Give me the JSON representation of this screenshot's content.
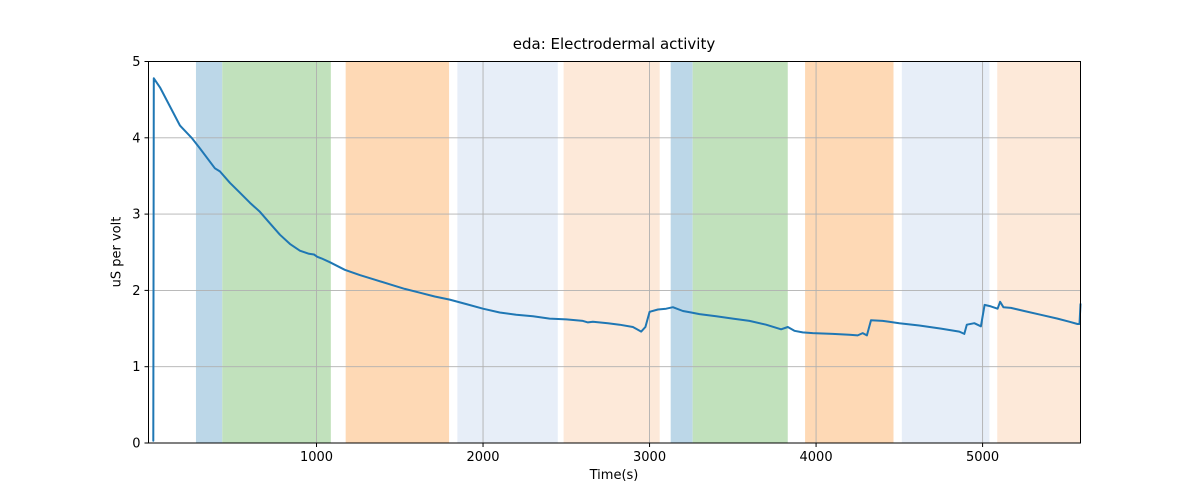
{
  "figure": {
    "title": "eda: Electrodermal activity",
    "xlabel": "Time(s)",
    "ylabel": "uS per volt"
  },
  "chart_data": {
    "type": "line",
    "title": "eda: Electrodermal activity",
    "xlabel": "Time(s)",
    "ylabel": "uS per volt",
    "xlim": [
      -9,
      5588
    ],
    "ylim": [
      0,
      5
    ],
    "xticks": [
      1000,
      2000,
      3000,
      4000,
      5000
    ],
    "yticks": [
      0,
      1,
      2,
      3,
      4,
      5
    ],
    "grid": true,
    "grid_color": "#b0b0b0",
    "line_color": "#1f77b4",
    "line_width": 2,
    "legend": "none",
    "series": [
      {
        "name": "eda",
        "points": [
          [
            20,
            0.03
          ],
          [
            23,
            4.78
          ],
          [
            60,
            4.66
          ],
          [
            120,
            4.41
          ],
          [
            180,
            4.16
          ],
          [
            250,
            4.0
          ],
          [
            300,
            3.86
          ],
          [
            390,
            3.6
          ],
          [
            420,
            3.56
          ],
          [
            480,
            3.41
          ],
          [
            540,
            3.28
          ],
          [
            600,
            3.15
          ],
          [
            660,
            3.03
          ],
          [
            720,
            2.88
          ],
          [
            780,
            2.73
          ],
          [
            840,
            2.61
          ],
          [
            900,
            2.52
          ],
          [
            955,
            2.48
          ],
          [
            985,
            2.47
          ],
          [
            1005,
            2.44
          ],
          [
            1030,
            2.42
          ],
          [
            1080,
            2.37
          ],
          [
            1170,
            2.27
          ],
          [
            1260,
            2.2
          ],
          [
            1350,
            2.14
          ],
          [
            1440,
            2.08
          ],
          [
            1530,
            2.02
          ],
          [
            1620,
            1.97
          ],
          [
            1710,
            1.92
          ],
          [
            1800,
            1.88
          ],
          [
            1900,
            1.82
          ],
          [
            2000,
            1.76
          ],
          [
            2100,
            1.71
          ],
          [
            2200,
            1.68
          ],
          [
            2300,
            1.66
          ],
          [
            2400,
            1.63
          ],
          [
            2500,
            1.62
          ],
          [
            2600,
            1.6
          ],
          [
            2630,
            1.58
          ],
          [
            2660,
            1.59
          ],
          [
            2750,
            1.57
          ],
          [
            2820,
            1.55
          ],
          [
            2900,
            1.52
          ],
          [
            2950,
            1.46
          ],
          [
            2975,
            1.52
          ],
          [
            3000,
            1.72
          ],
          [
            3050,
            1.75
          ],
          [
            3100,
            1.76
          ],
          [
            3140,
            1.78
          ],
          [
            3200,
            1.73
          ],
          [
            3250,
            1.71
          ],
          [
            3300,
            1.69
          ],
          [
            3400,
            1.66
          ],
          [
            3500,
            1.63
          ],
          [
            3600,
            1.6
          ],
          [
            3700,
            1.55
          ],
          [
            3790,
            1.49
          ],
          [
            3830,
            1.52
          ],
          [
            3870,
            1.47
          ],
          [
            3920,
            1.45
          ],
          [
            3980,
            1.44
          ],
          [
            4100,
            1.43
          ],
          [
            4200,
            1.42
          ],
          [
            4250,
            1.41
          ],
          [
            4280,
            1.44
          ],
          [
            4305,
            1.41
          ],
          [
            4330,
            1.61
          ],
          [
            4400,
            1.6
          ],
          [
            4500,
            1.57
          ],
          [
            4620,
            1.54
          ],
          [
            4750,
            1.5
          ],
          [
            4860,
            1.46
          ],
          [
            4890,
            1.43
          ],
          [
            4905,
            1.55
          ],
          [
            4950,
            1.57
          ],
          [
            4990,
            1.53
          ],
          [
            5012,
            1.81
          ],
          [
            5050,
            1.79
          ],
          [
            5090,
            1.76
          ],
          [
            5105,
            1.85
          ],
          [
            5125,
            1.78
          ],
          [
            5170,
            1.77
          ],
          [
            5250,
            1.73
          ],
          [
            5350,
            1.68
          ],
          [
            5450,
            1.63
          ],
          [
            5520,
            1.59
          ],
          [
            5570,
            1.56
          ],
          [
            5582,
            1.56
          ],
          [
            5588,
            1.82
          ]
        ]
      }
    ],
    "bands": [
      {
        "start": 276,
        "end": 434,
        "color": "#bcd7e8"
      },
      {
        "start": 434,
        "end": 1086,
        "color": "#c1e1bc"
      },
      {
        "start": 1175,
        "end": 1796,
        "color": "#fed9b5"
      },
      {
        "start": 1846,
        "end": 2449,
        "color": "#e7eef8"
      },
      {
        "start": 2484,
        "end": 3061,
        "color": "#fde9d9"
      },
      {
        "start": 3127,
        "end": 3259,
        "color": "#bcd7e8"
      },
      {
        "start": 3259,
        "end": 3830,
        "color": "#c1e1bc"
      },
      {
        "start": 3934,
        "end": 4465,
        "color": "#fed9b5"
      },
      {
        "start": 4515,
        "end": 5041,
        "color": "#e7eef8"
      },
      {
        "start": 5088,
        "end": 5588,
        "color": "#fde9d9"
      }
    ]
  }
}
